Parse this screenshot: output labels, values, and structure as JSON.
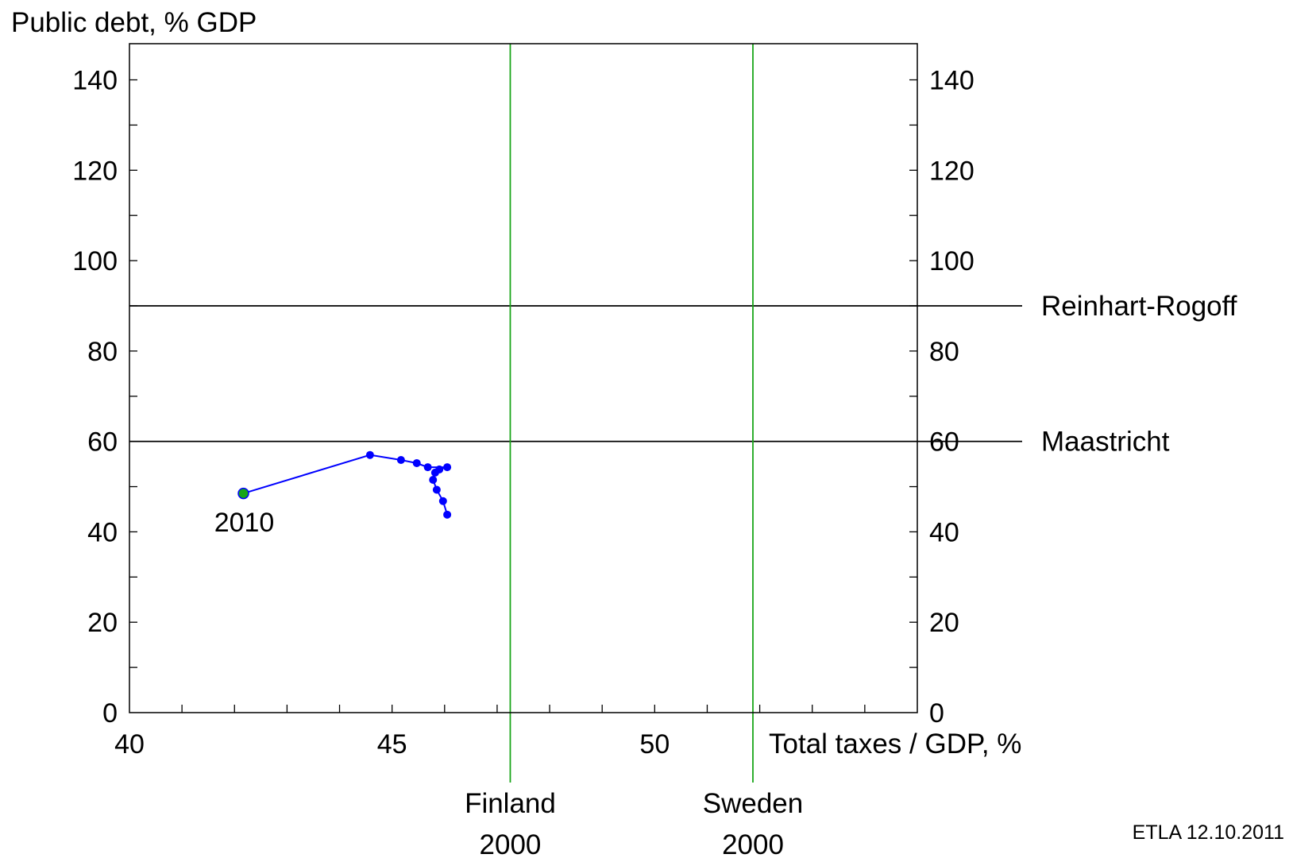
{
  "chart_data": {
    "type": "line",
    "ylabel": "Public debt, % GDP",
    "xlabel": "Total taxes / GDP, %",
    "xlim": [
      40,
      55
    ],
    "ylim": [
      0,
      148
    ],
    "x_ticks": [
      40,
      45,
      50
    ],
    "y_ticks": [
      0,
      20,
      40,
      60,
      80,
      100,
      120,
      140
    ],
    "grid": false,
    "series": [
      {
        "color": "#0000ff",
        "points": [
          {
            "x": 46.05,
            "y": 43.8
          },
          {
            "x": 45.97,
            "y": 46.8
          },
          {
            "x": 45.85,
            "y": 49.3
          },
          {
            "x": 45.78,
            "y": 51.5
          },
          {
            "x": 45.82,
            "y": 53.1
          },
          {
            "x": 45.9,
            "y": 53.8
          },
          {
            "x": 46.05,
            "y": 54.3
          },
          {
            "x": 45.68,
            "y": 54.3
          },
          {
            "x": 45.47,
            "y": 55.2
          },
          {
            "x": 45.17,
            "y": 55.9
          },
          {
            "x": 44.58,
            "y": 57.0
          },
          {
            "x": 42.17,
            "y": 48.5
          }
        ],
        "highlight": {
          "x": 42.17,
          "y": 48.5,
          "label": "2010",
          "color": "#18a518"
        }
      }
    ],
    "reference_lines": [
      {
        "orientation": "horizontal",
        "value": 90,
        "label": "Reinhart-Rogoff",
        "color": "#000000"
      },
      {
        "orientation": "horizontal",
        "value": 60,
        "label": "Maastricht",
        "color": "#000000"
      },
      {
        "orientation": "vertical",
        "value": 47.25,
        "label_line1": "Finland",
        "label_line2": "2000",
        "color": "#18a518"
      },
      {
        "orientation": "vertical",
        "value": 51.87,
        "label_line1": "Sweden",
        "label_line2": "2000",
        "color": "#18a518"
      }
    ],
    "footer": "ETLA 12.10.2011"
  }
}
